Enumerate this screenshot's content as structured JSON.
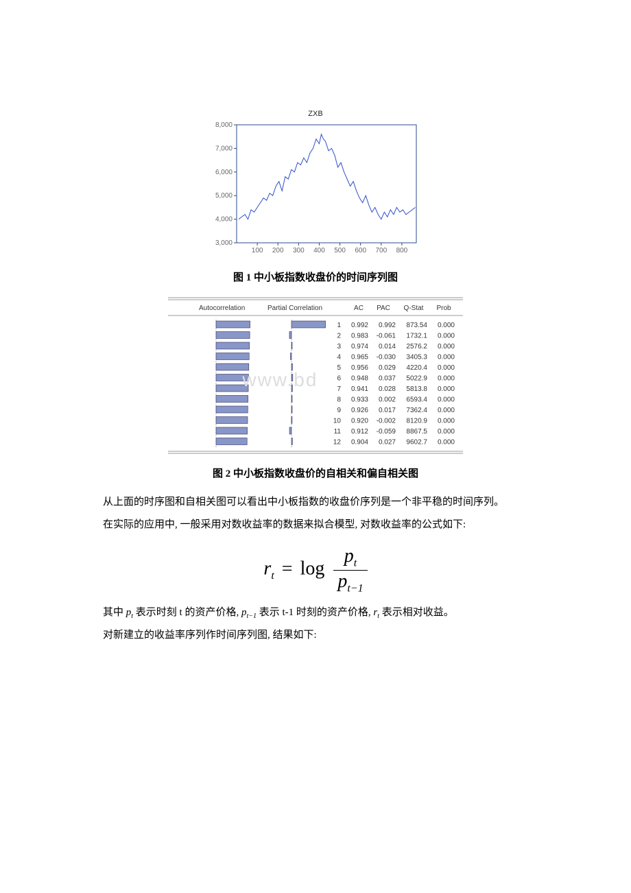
{
  "chart1": {
    "type": "line",
    "title": "ZXB",
    "title_fontsize": 11,
    "background_color": "#ffffff",
    "border_color": "#2a4b8d",
    "line_color": "#3050c8",
    "line_width": 1,
    "xlim": [
      0,
      870
    ],
    "ylim": [
      3000,
      8000
    ],
    "xticks": [
      100,
      200,
      300,
      400,
      500,
      600,
      700,
      800
    ],
    "yticks": [
      3000,
      4000,
      5000,
      6000,
      7000,
      8000
    ],
    "ytick_labels": [
      "3,000",
      "4,000",
      "5,000",
      "6,000",
      "7,000",
      "8,000"
    ],
    "tick_fontsize": 10,
    "tick_color": "#666666",
    "series": [
      [
        10,
        4000
      ],
      [
        25,
        4100
      ],
      [
        40,
        4200
      ],
      [
        55,
        4000
      ],
      [
        70,
        4400
      ],
      [
        85,
        4300
      ],
      [
        100,
        4500
      ],
      [
        115,
        4700
      ],
      [
        130,
        4900
      ],
      [
        145,
        4800
      ],
      [
        160,
        5100
      ],
      [
        175,
        5000
      ],
      [
        190,
        5400
      ],
      [
        205,
        5600
      ],
      [
        220,
        5200
      ],
      [
        235,
        5800
      ],
      [
        250,
        5700
      ],
      [
        265,
        6100
      ],
      [
        280,
        6000
      ],
      [
        295,
        6400
      ],
      [
        310,
        6300
      ],
      [
        325,
        6600
      ],
      [
        340,
        6400
      ],
      [
        355,
        6800
      ],
      [
        370,
        7000
      ],
      [
        385,
        7400
      ],
      [
        400,
        7200
      ],
      [
        410,
        7600
      ],
      [
        420,
        7400
      ],
      [
        430,
        7300
      ],
      [
        445,
        6900
      ],
      [
        460,
        7000
      ],
      [
        475,
        6700
      ],
      [
        490,
        6200
      ],
      [
        505,
        6400
      ],
      [
        520,
        6000
      ],
      [
        535,
        5700
      ],
      [
        550,
        5400
      ],
      [
        565,
        5600
      ],
      [
        580,
        5200
      ],
      [
        595,
        4900
      ],
      [
        610,
        4700
      ],
      [
        625,
        5000
      ],
      [
        640,
        4600
      ],
      [
        655,
        4300
      ],
      [
        670,
        4500
      ],
      [
        685,
        4200
      ],
      [
        700,
        4000
      ],
      [
        715,
        4300
      ],
      [
        730,
        4100
      ],
      [
        745,
        4400
      ],
      [
        760,
        4200
      ],
      [
        775,
        4500
      ],
      [
        790,
        4300
      ],
      [
        805,
        4400
      ],
      [
        820,
        4200
      ],
      [
        835,
        4300
      ],
      [
        850,
        4400
      ],
      [
        865,
        4500
      ]
    ]
  },
  "caption1": "图 1 中小板指数收盘价的时间序列图",
  "corr_table": {
    "type": "table",
    "header_ac": "Autocorrelation",
    "header_pac": "Partial Correlation",
    "col_lag": "",
    "col_ac": "AC",
    "col_pac": "PAC",
    "col_qstat": "Q-Stat",
    "col_prob": "Prob",
    "header_fontsize": 10,
    "row_fontsize": 10,
    "text_color": "#333333",
    "border_color": "#999999",
    "ac_bar_color": "#8896c8",
    "ac_bar_border": "#333366",
    "pac_bar_color": "#8896c8",
    "pac_bar_border": "#333366",
    "chart_bg": "#ffffff",
    "dashed_color": "#aaaaaa",
    "rows": [
      {
        "lag": 1,
        "ac": 0.992,
        "pac": 0.992,
        "qstat": "873.54",
        "prob": "0.000"
      },
      {
        "lag": 2,
        "ac": 0.983,
        "pac": -0.061,
        "qstat": "1732.1",
        "prob": "0.000"
      },
      {
        "lag": 3,
        "ac": 0.974,
        "pac": 0.014,
        "qstat": "2576.2",
        "prob": "0.000"
      },
      {
        "lag": 4,
        "ac": 0.965,
        "pac": -0.03,
        "qstat": "3405.3",
        "prob": "0.000"
      },
      {
        "lag": 5,
        "ac": 0.956,
        "pac": 0.029,
        "qstat": "4220.4",
        "prob": "0.000"
      },
      {
        "lag": 6,
        "ac": 0.948,
        "pac": 0.037,
        "qstat": "5022.9",
        "prob": "0.000"
      },
      {
        "lag": 7,
        "ac": 0.941,
        "pac": 0.028,
        "qstat": "5813.8",
        "prob": "0.000"
      },
      {
        "lag": 8,
        "ac": 0.933,
        "pac": 0.002,
        "qstat": "6593.4",
        "prob": "0.000"
      },
      {
        "lag": 9,
        "ac": 0.926,
        "pac": 0.017,
        "qstat": "7362.4",
        "prob": "0.000"
      },
      {
        "lag": 10,
        "ac": 0.92,
        "pac": -0.002,
        "qstat": "8120.9",
        "prob": "0.000"
      },
      {
        "lag": 11,
        "ac": 0.912,
        "pac": -0.059,
        "qstat": "8867.5",
        "prob": "0.000"
      },
      {
        "lag": 12,
        "ac": 0.904,
        "pac": 0.027,
        "qstat": "9602.7",
        "prob": "0.000"
      }
    ]
  },
  "watermark": "www.bd",
  "caption2": "图 2 中小板指数收盘价的自相关和偏自相关图",
  "paragraph1": "从上面的时序图和自相关图可以看出中小板指数的收盘价序列是一个非平稳的时间序列。",
  "paragraph2": "在实际的应用中, 一般采用对数收益率的数据来拟合模型, 对数收益率的公式如下:",
  "formula": {
    "lhs_var": "r",
    "lhs_sub": "t",
    "op": "log",
    "num_var": "p",
    "num_sub": "t",
    "den_var": "p",
    "den_sub": "t−1"
  },
  "para3_pre": "其中 ",
  "para3_pt": "p",
  "para3_pt_sub": "t",
  "para3_mid1": " 表示时刻 t 的资产价格, ",
  "para3_pt1": "p",
  "para3_pt1_sub": "t−1",
  "para3_mid2": " 表示 t-1 时刻的资产价格, ",
  "para3_rt": "r",
  "para3_rt_sub": "t",
  "para3_end": " 表示相对收益。",
  "paragraph4": "对新建立的收益率序列作时间序列图, 结果如下:"
}
